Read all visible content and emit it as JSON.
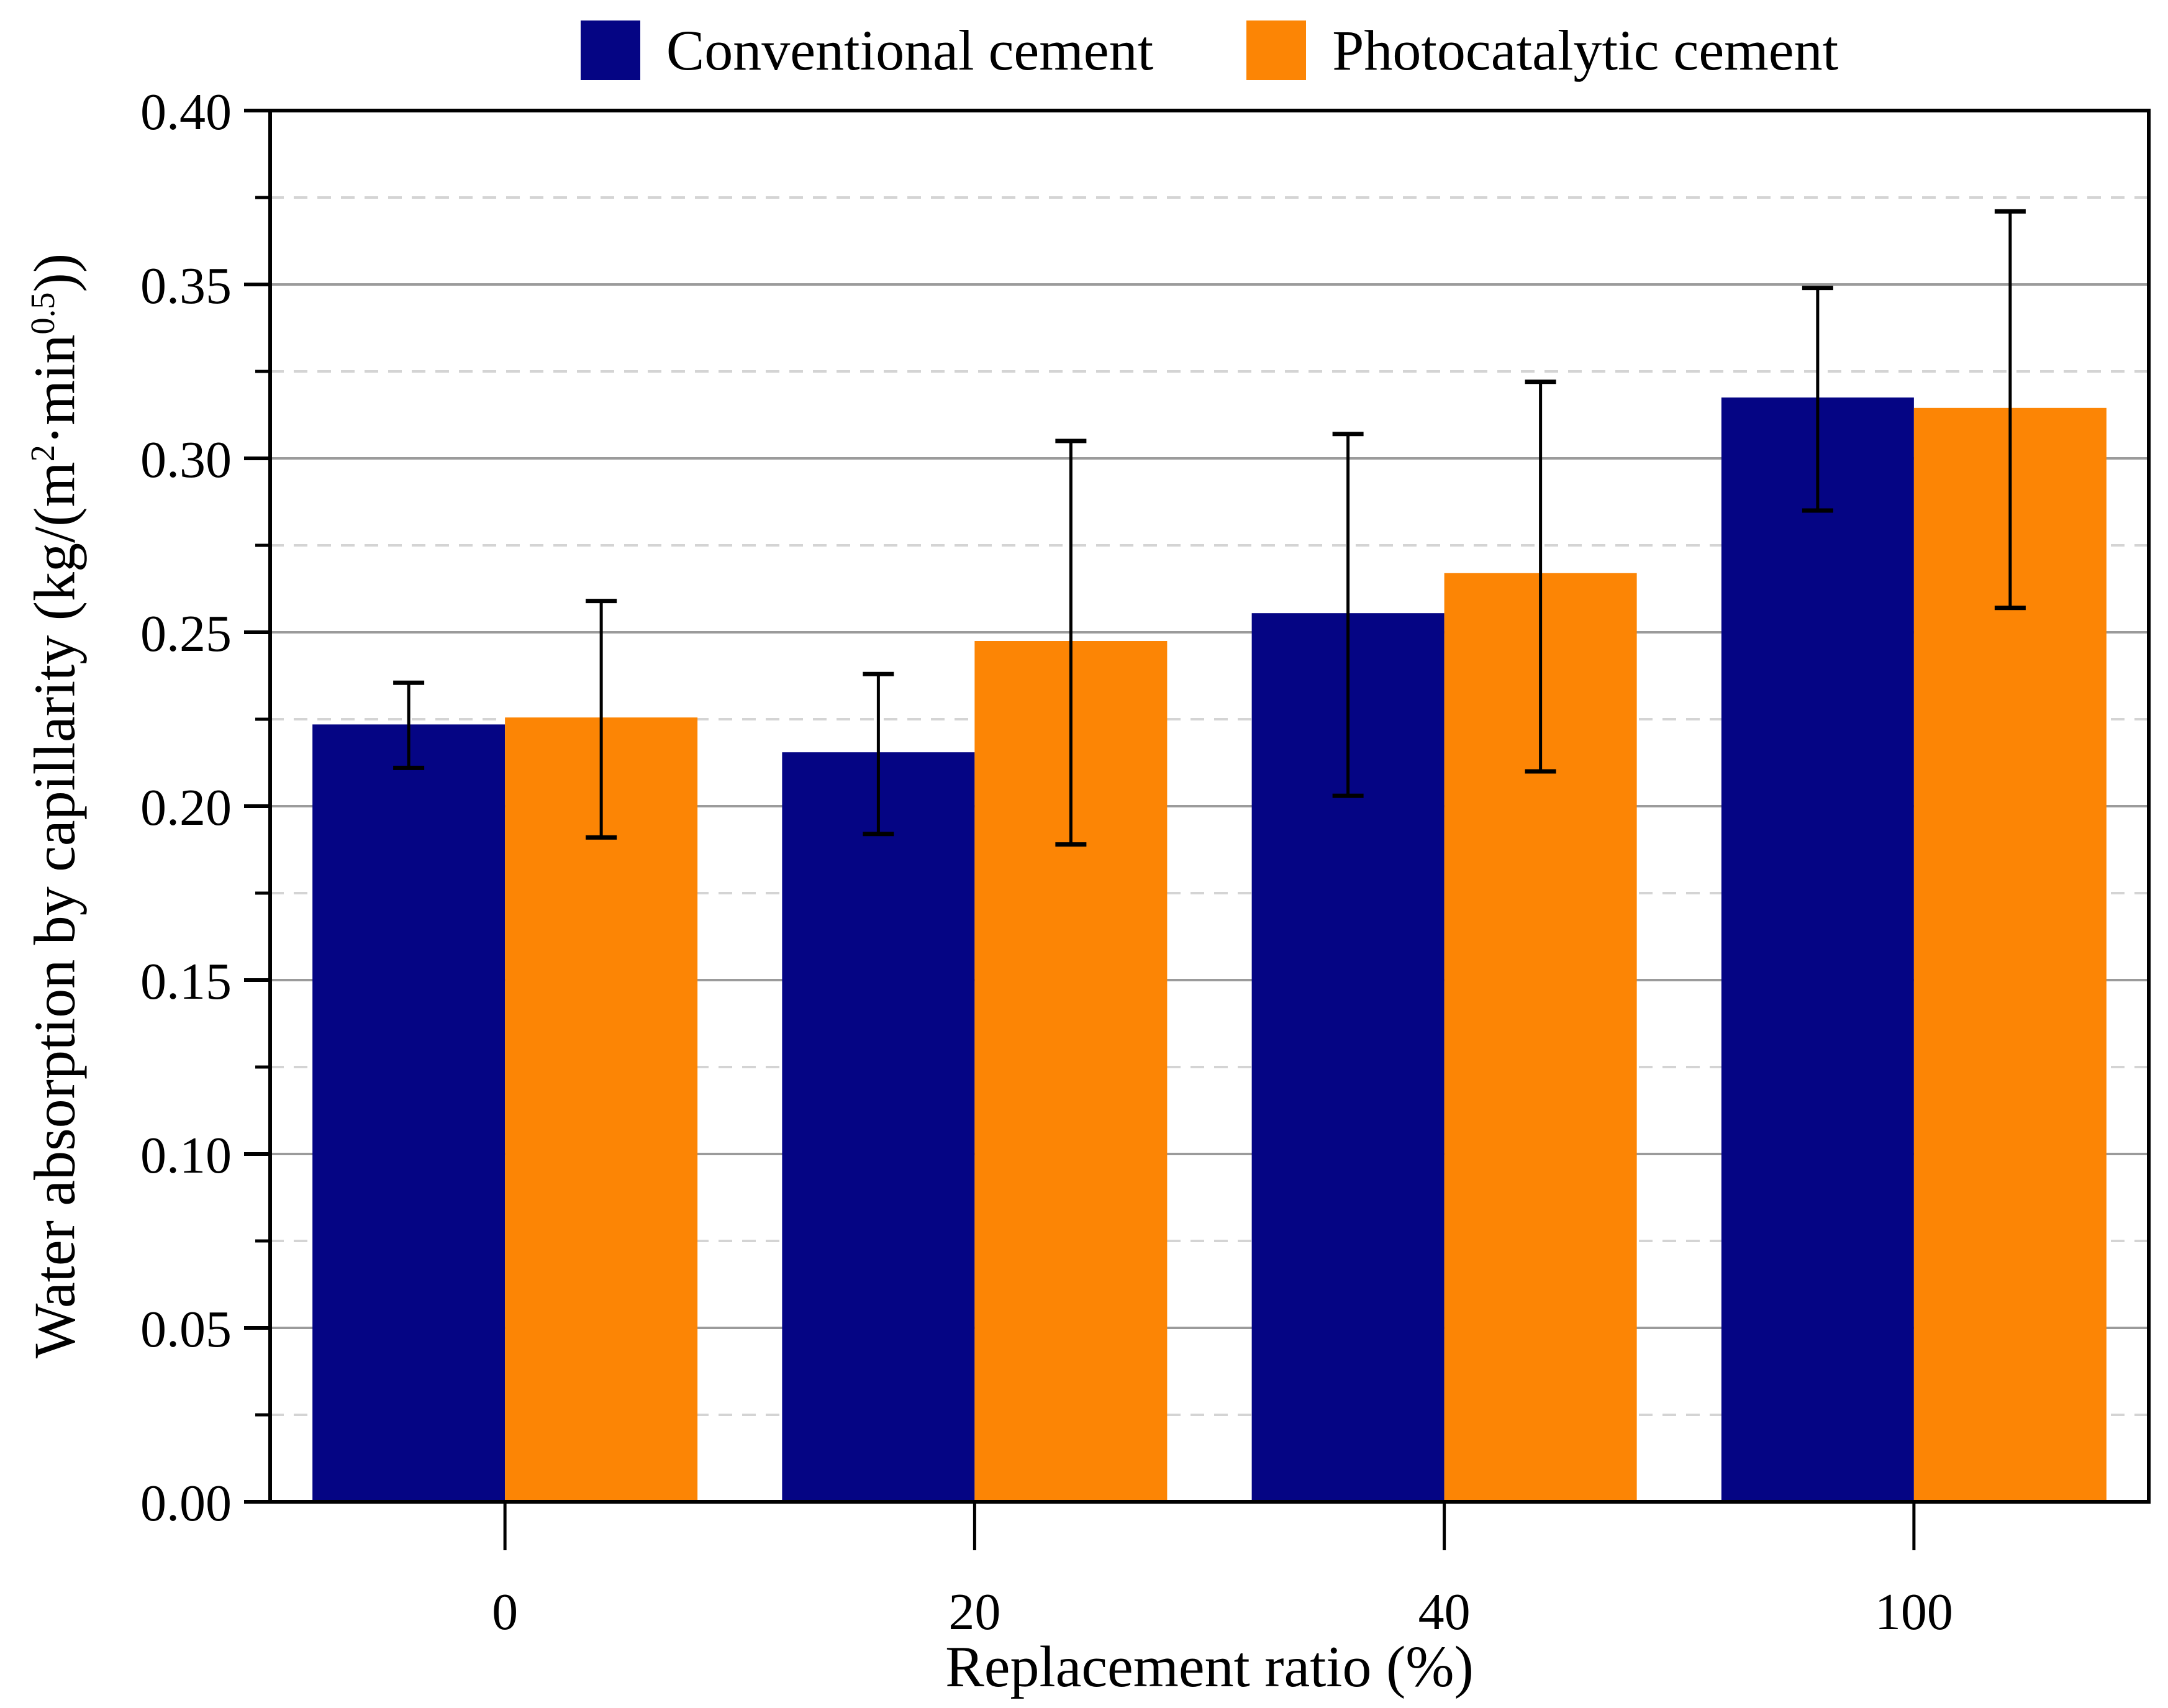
{
  "figure": {
    "background": "#ffffff"
  },
  "legend": {
    "items": [
      {
        "label": "Conventional cement",
        "color": "#050584"
      },
      {
        "label": "Photocatalytic cement",
        "color": "#FC8505"
      }
    ]
  },
  "axes": {
    "x_title": "Replacement ratio (%)",
    "y_title": {
      "pre": "Water absorption by capillarity (kg/(m",
      "sup1": "2",
      "mid": "·min",
      "sup2": "0.5",
      "post": "))"
    }
  },
  "chart_data": {
    "type": "bar",
    "title": "",
    "categories": [
      "0",
      "20",
      "40",
      "100"
    ],
    "xlabel": "Replacement ratio (%)",
    "ylabel": "Water absorption by capillarity (kg/(m2·min0.5))",
    "ylim": [
      0.0,
      0.4
    ],
    "y_major_tick_step": 0.05,
    "y_minor_tick_step": 0.025,
    "y_tick_labels": [
      "0.00",
      "0.05",
      "0.10",
      "0.15",
      "0.20",
      "0.25",
      "0.30",
      "0.35",
      "0.40"
    ],
    "grid": {
      "major_style": "solid",
      "minor_style": "dashed",
      "major_color": "#9b9b9b",
      "minor_color": "#d4d4d4"
    },
    "legend_position": "top-center",
    "error_bars": true,
    "series": [
      {
        "name": "Conventional cement",
        "color": "#050584",
        "values": [
          0.2235,
          0.2155,
          0.2555,
          0.3175
        ],
        "err_low": [
          0.211,
          0.192,
          0.203,
          0.285
        ],
        "err_high": [
          0.2355,
          0.238,
          0.307,
          0.349
        ]
      },
      {
        "name": "Photocatalytic cement",
        "color": "#FC8505",
        "values": [
          0.2255,
          0.2475,
          0.267,
          0.3145
        ],
        "err_low": [
          0.191,
          0.189,
          0.21,
          0.257
        ],
        "err_high": [
          0.259,
          0.305,
          0.322,
          0.371
        ]
      }
    ]
  }
}
